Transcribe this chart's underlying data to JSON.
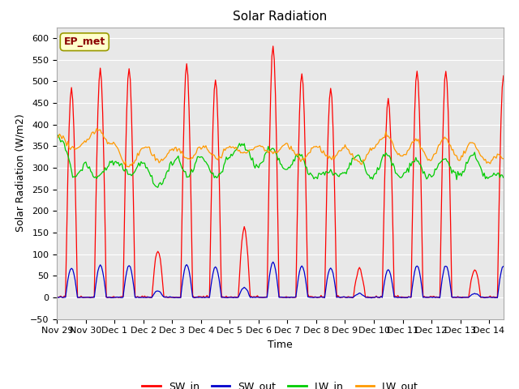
{
  "title": "Solar Radiation",
  "xlabel": "Time",
  "ylabel": "Solar Radiation (W/m2)",
  "ylim": [
    -50,
    625
  ],
  "series_colors": {
    "SW_in": "#ff0000",
    "SW_out": "#0000cc",
    "LW_in": "#00cc00",
    "LW_out": "#ff9900"
  },
  "bg_color": "#ffffff",
  "plot_bg_color": "#e8e8e8",
  "grid_color": "#ffffff",
  "hours_per_day": 24,
  "total_days": 16,
  "tick_labels": [
    "Nov 29",
    "Nov 30",
    "Dec 1",
    "Dec 2",
    "Dec 3",
    "Dec 4",
    "Dec 5",
    "Dec 6",
    "Dec 7",
    "Dec 8",
    "Dec 9",
    "Dec 10",
    "Dec 11",
    "Dec 12",
    "Dec 13",
    "Dec 14"
  ],
  "yticks": [
    -50,
    0,
    50,
    100,
    150,
    200,
    250,
    300,
    350,
    400,
    450,
    500,
    550,
    600
  ],
  "ep_met_label": "EP_met",
  "legend_entries": [
    "SW_in",
    "SW_out",
    "LW_in",
    "LW_out"
  ]
}
